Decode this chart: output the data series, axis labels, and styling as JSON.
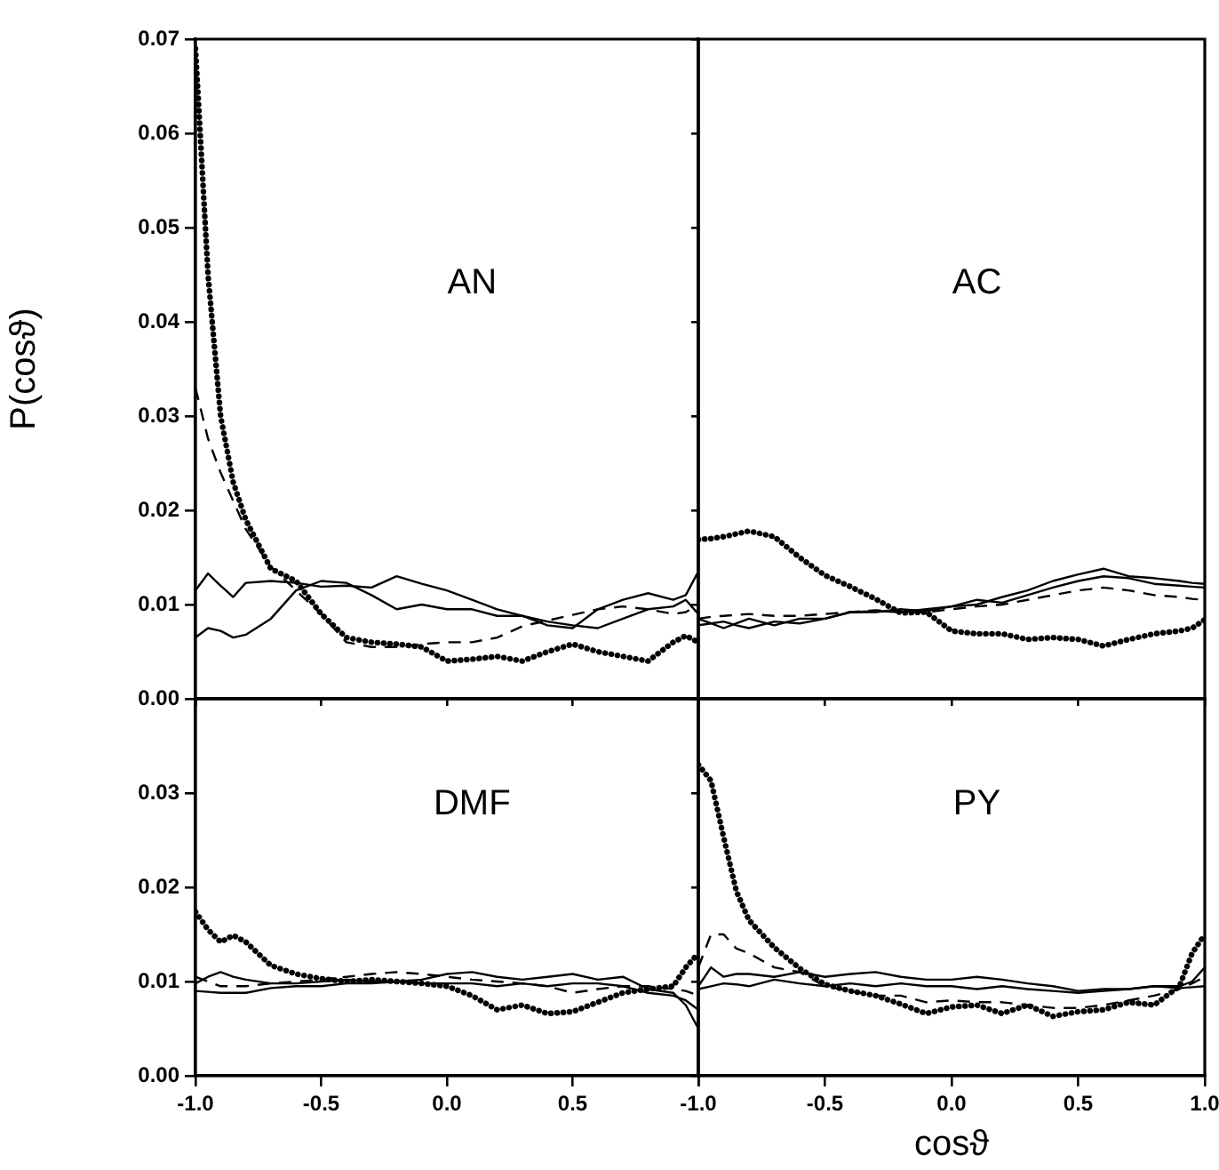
{
  "chart_data": [
    {
      "type": "line",
      "annotations": [
        "AN"
      ],
      "ylabel": "P(cosϑ)",
      "tick_labels": "y",
      "xlim": [
        -1,
        1
      ],
      "xticks": [
        -1,
        -0.5,
        0,
        0.5,
        1
      ],
      "ylim": [
        0,
        0.07
      ],
      "yticks": [
        {
          "value": 0,
          "label": "0.00"
        },
        {
          "value": 0.01,
          "label": "0.01"
        },
        {
          "value": 0.02,
          "label": "0.02"
        },
        {
          "value": 0.03,
          "label": "0.03"
        },
        {
          "value": 0.04,
          "label": "0.04"
        },
        {
          "value": 0.05,
          "label": "0.05"
        },
        {
          "value": 0.06,
          "label": "0.06"
        },
        {
          "value": 0.07,
          "label": "0.07"
        }
      ],
      "x": [
        -1,
        -0.95,
        -0.9,
        -0.85,
        -0.8,
        -0.7,
        -0.6,
        -0.5,
        -0.4,
        -0.3,
        -0.2,
        -0.1,
        0,
        0.1,
        0.2,
        0.3,
        0.4,
        0.5,
        0.6,
        0.7,
        0.8,
        0.9,
        0.95,
        1
      ],
      "series": [
        {
          "color": "#000000",
          "line_style": "dotted",
          "values": [
            0.069,
            0.045,
            0.03,
            0.023,
            0.019,
            0.0138,
            0.0125,
            0.009,
            0.0065,
            0.006,
            0.0058,
            0.0055,
            0.004,
            0.0042,
            0.0045,
            0.004,
            0.005,
            0.0058,
            0.005,
            0.0045,
            0.004,
            0.006,
            0.0067,
            0.006
          ]
        },
        {
          "color": "#000000",
          "line_style": "dashed",
          "values": [
            0.033,
            0.0276,
            0.024,
            0.021,
            0.018,
            0.014,
            0.0115,
            0.009,
            0.006,
            0.0055,
            0.0055,
            0.0058,
            0.006,
            0.006,
            0.0065,
            0.0077,
            0.0083,
            0.0089,
            0.0095,
            0.0098,
            0.0095,
            0.009,
            0.0092,
            0.01
          ]
        },
        {
          "color": "#000000",
          "line_style": "solid",
          "values": [
            0.0115,
            0.0133,
            0.012,
            0.0108,
            0.0123,
            0.0125,
            0.0123,
            0.0119,
            0.012,
            0.0118,
            0.013,
            0.0122,
            0.0115,
            0.0105,
            0.0095,
            0.0088,
            0.0078,
            0.0075,
            0.0095,
            0.0105,
            0.0112,
            0.0105,
            0.011,
            0.0135
          ]
        },
        {
          "color": "#000000",
          "line_style": "solid",
          "values": [
            0.0065,
            0.0075,
            0.0072,
            0.0065,
            0.0068,
            0.0085,
            0.0115,
            0.0125,
            0.0123,
            0.011,
            0.0095,
            0.01,
            0.0095,
            0.0095,
            0.0088,
            0.0088,
            0.0082,
            0.0078,
            0.0075,
            0.0085,
            0.0095,
            0.0098,
            0.0105,
            0.009
          ]
        }
      ]
    },
    {
      "type": "line",
      "annotations": [
        "AC"
      ],
      "tick_labels": false,
      "xlim": [
        -1,
        1
      ],
      "xticks": [
        -1,
        -0.5,
        0,
        0.5,
        1
      ],
      "ylim": [
        0,
        0.07
      ],
      "yticks": [
        0,
        0.01,
        0.02,
        0.03,
        0.04,
        0.05,
        0.06,
        0.07
      ],
      "x": [
        -1,
        -0.95,
        -0.9,
        -0.85,
        -0.8,
        -0.7,
        -0.6,
        -0.5,
        -0.4,
        -0.3,
        -0.2,
        -0.1,
        0,
        0.1,
        0.2,
        0.3,
        0.4,
        0.5,
        0.6,
        0.7,
        0.8,
        0.9,
        0.95,
        1
      ],
      "series": [
        {
          "color": "#000000",
          "line_style": "dotted",
          "values": [
            0.0169,
            0.017,
            0.0172,
            0.0175,
            0.0178,
            0.0172,
            0.015,
            0.0131,
            0.0119,
            0.0106,
            0.0091,
            0.0092,
            0.0072,
            0.0069,
            0.0069,
            0.0063,
            0.0065,
            0.0063,
            0.0056,
            0.0063,
            0.0069,
            0.0072,
            0.0075,
            0.0084
          ]
        },
        {
          "color": "#000000",
          "line_style": "dashed",
          "values": [
            0.0085,
            0.0087,
            0.0088,
            0.0089,
            0.009,
            0.0088,
            0.0088,
            0.009,
            0.0092,
            0.0094,
            0.0092,
            0.0092,
            0.0095,
            0.0098,
            0.01,
            0.0105,
            0.011,
            0.0115,
            0.0118,
            0.0115,
            0.011,
            0.0108,
            0.0106,
            0.0105
          ]
        },
        {
          "color": "#000000",
          "line_style": "solid",
          "values": [
            0.0085,
            0.008,
            0.0075,
            0.008,
            0.0085,
            0.0078,
            0.0085,
            0.0085,
            0.0092,
            0.0093,
            0.0092,
            0.0095,
            0.0098,
            0.01,
            0.0108,
            0.0115,
            0.0125,
            0.0132,
            0.0138,
            0.013,
            0.0128,
            0.0125,
            0.0123,
            0.0122
          ]
        },
        {
          "color": "#000000",
          "line_style": "solid",
          "values": [
            0.0078,
            0.008,
            0.0082,
            0.0078,
            0.0075,
            0.0082,
            0.008,
            0.0085,
            0.0092,
            0.0092,
            0.0095,
            0.0093,
            0.0098,
            0.0105,
            0.0102,
            0.011,
            0.0118,
            0.0125,
            0.013,
            0.0128,
            0.0122,
            0.012,
            0.0119,
            0.0118
          ]
        }
      ]
    },
    {
      "type": "line",
      "annotations": [
        "DMF"
      ],
      "xlim": [
        -1,
        1
      ],
      "xticks": [
        {
          "value": -1,
          "label": "-1.0"
        },
        {
          "value": -0.5,
          "label": "-0.5"
        },
        {
          "value": 0,
          "label": "0.0"
        },
        {
          "value": 0.5,
          "label": "0.5"
        },
        {
          "value": 1,
          "label": null
        }
      ],
      "ylim": [
        0,
        0.04
      ],
      "yticks": [
        {
          "value": 0,
          "label": "0.00"
        },
        {
          "value": 0.01,
          "label": "0.01"
        },
        {
          "value": 0.02,
          "label": "0.02"
        },
        {
          "value": 0.03,
          "label": "0.03"
        }
      ],
      "x": [
        -1,
        -0.95,
        -0.9,
        -0.85,
        -0.8,
        -0.7,
        -0.6,
        -0.5,
        -0.4,
        -0.3,
        -0.2,
        -0.1,
        0,
        0.1,
        0.2,
        0.3,
        0.4,
        0.5,
        0.6,
        0.7,
        0.8,
        0.9,
        0.95,
        1
      ],
      "series": [
        {
          "color": "#000000",
          "line_style": "dotted",
          "values": [
            0.0174,
            0.0155,
            0.0142,
            0.0149,
            0.0142,
            0.0117,
            0.0108,
            0.0103,
            0.01,
            0.0102,
            0.01,
            0.0098,
            0.0095,
            0.0085,
            0.007,
            0.0075,
            0.0066,
            0.0068,
            0.0078,
            0.0088,
            0.0092,
            0.0095,
            0.0115,
            0.013
          ]
        },
        {
          "color": "#000000",
          "line_style": "dashed",
          "values": [
            0.0105,
            0.01,
            0.0095,
            0.0095,
            0.0095,
            0.0098,
            0.01,
            0.0102,
            0.0105,
            0.0108,
            0.011,
            0.0108,
            0.0105,
            0.0102,
            0.01,
            0.0098,
            0.0095,
            0.0088,
            0.0092,
            0.0095,
            0.0095,
            0.0092,
            0.009,
            0.0085
          ]
        },
        {
          "color": "#000000",
          "line_style": "solid",
          "values": [
            0.0098,
            0.0105,
            0.011,
            0.0105,
            0.0102,
            0.0098,
            0.0098,
            0.01,
            0.0102,
            0.01,
            0.01,
            0.0102,
            0.0108,
            0.011,
            0.0105,
            0.0102,
            0.0105,
            0.0108,
            0.0102,
            0.0105,
            0.0092,
            0.0088,
            0.0075,
            0.005
          ]
        },
        {
          "color": "#000000",
          "line_style": "solid",
          "values": [
            0.009,
            0.0089,
            0.0088,
            0.0088,
            0.0088,
            0.0093,
            0.0095,
            0.0095,
            0.0098,
            0.0098,
            0.01,
            0.0098,
            0.0098,
            0.0098,
            0.0095,
            0.0098,
            0.0095,
            0.0098,
            0.0098,
            0.0095,
            0.0088,
            0.0085,
            0.008,
            0.007
          ]
        }
      ]
    },
    {
      "type": "line",
      "annotations": [
        "PY"
      ],
      "xlabel": "cosϑ",
      "tick_labels": "x",
      "xlim": [
        -1,
        1
      ],
      "xticks": [
        {
          "value": -1,
          "label": "-1.0"
        },
        {
          "value": -0.5,
          "label": "-0.5"
        },
        {
          "value": 0,
          "label": "0.0"
        },
        {
          "value": 0.5,
          "label": "0.5"
        },
        {
          "value": 1,
          "label": "1.0"
        }
      ],
      "ylim": [
        0,
        0.04
      ],
      "yticks": [
        0,
        0.01,
        0.02,
        0.03
      ],
      "x": [
        -1,
        -0.95,
        -0.9,
        -0.85,
        -0.8,
        -0.7,
        -0.6,
        -0.5,
        -0.4,
        -0.3,
        -0.2,
        -0.1,
        0,
        0.1,
        0.2,
        0.3,
        0.4,
        0.5,
        0.6,
        0.7,
        0.8,
        0.9,
        0.95,
        1
      ],
      "series": [
        {
          "color": "#000000",
          "line_style": "dotted",
          "values": [
            0.033,
            0.0313,
            0.0253,
            0.0196,
            0.0165,
            0.0136,
            0.0114,
            0.0097,
            0.009,
            0.0085,
            0.0076,
            0.0066,
            0.0073,
            0.0075,
            0.0066,
            0.0075,
            0.0063,
            0.0068,
            0.007,
            0.0078,
            0.0075,
            0.0095,
            0.013,
            0.015
          ]
        },
        {
          "color": "#000000",
          "line_style": "dashed",
          "values": [
            0.0115,
            0.015,
            0.015,
            0.0135,
            0.013,
            0.0115,
            0.011,
            0.0095,
            0.009,
            0.0085,
            0.0085,
            0.0078,
            0.008,
            0.0078,
            0.0078,
            0.0075,
            0.0072,
            0.0072,
            0.0075,
            0.008,
            0.0085,
            0.0092,
            0.0098,
            0.0105
          ]
        },
        {
          "color": "#000000",
          "line_style": "solid",
          "values": [
            0.0095,
            0.0115,
            0.0105,
            0.0108,
            0.0108,
            0.0105,
            0.011,
            0.0105,
            0.0108,
            0.011,
            0.0105,
            0.0102,
            0.0102,
            0.0105,
            0.0102,
            0.0098,
            0.0095,
            0.009,
            0.0092,
            0.0092,
            0.0095,
            0.0095,
            0.01,
            0.0115
          ]
        },
        {
          "color": "#000000",
          "line_style": "solid",
          "values": [
            0.0092,
            0.0095,
            0.0098,
            0.0097,
            0.0095,
            0.0102,
            0.0098,
            0.0095,
            0.0098,
            0.0095,
            0.0098,
            0.0095,
            0.0095,
            0.0092,
            0.0095,
            0.0092,
            0.009,
            0.0088,
            0.009,
            0.0092,
            0.0095,
            0.0093,
            0.0094,
            0.0095
          ]
        }
      ]
    }
  ]
}
